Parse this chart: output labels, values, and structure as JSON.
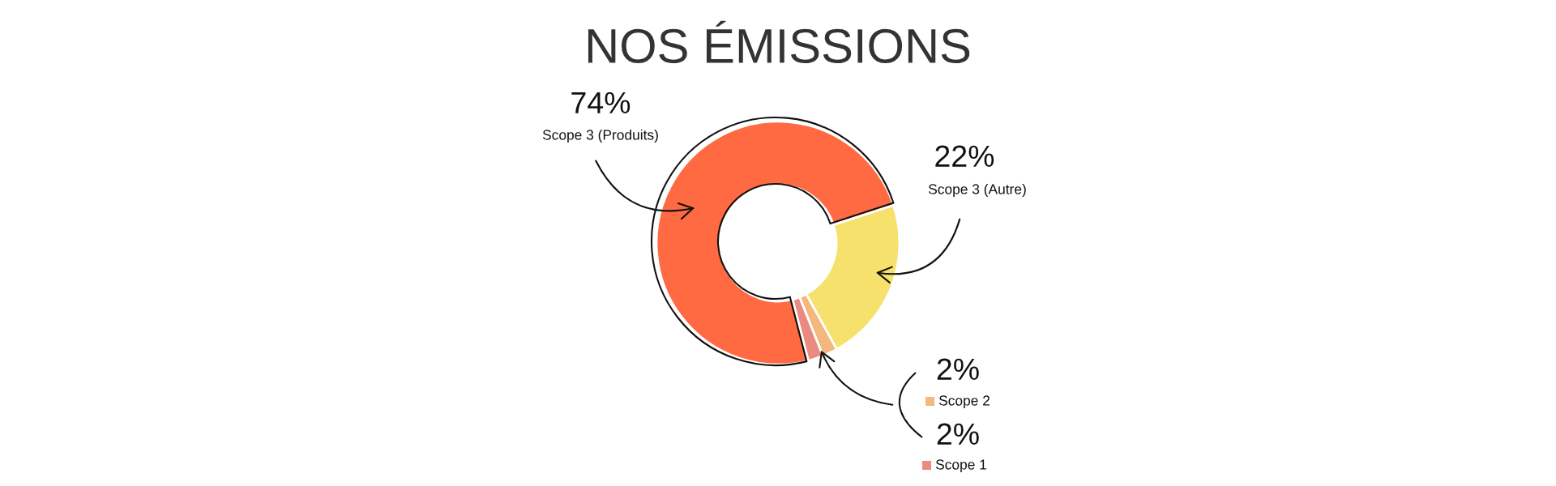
{
  "chart_data": {
    "type": "donut",
    "title": "NOS ÉMISSIONS",
    "categories": [
      "Scope 3 (Produits)",
      "Scope 3 (Autre)",
      "Scope 2",
      "Scope 1"
    ],
    "values": [
      74,
      22,
      2,
      2
    ],
    "colors": [
      "#ff6a42",
      "#f5e16b",
      "#f4b77c",
      "#eb8a80"
    ],
    "value_labels": [
      "74%",
      "22%",
      "2%",
      "2%"
    ],
    "legend": "bottom right"
  }
}
